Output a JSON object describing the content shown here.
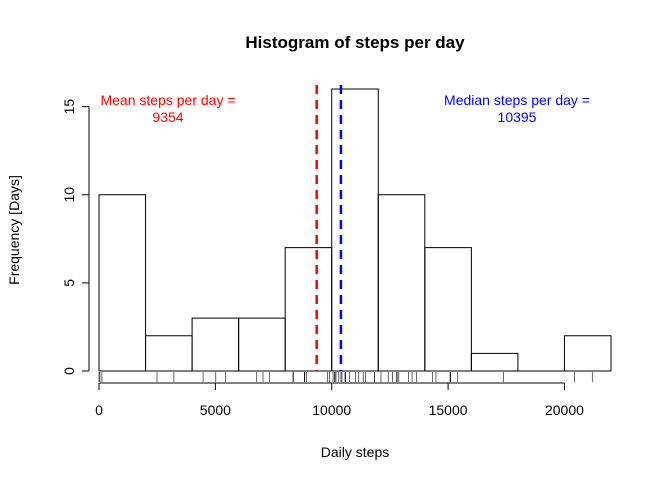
{
  "chart_data": {
    "type": "bar",
    "subtype": "histogram",
    "title": "Histogram of steps per day",
    "xlabel": "Daily steps",
    "ylabel": "Frequency [Days]",
    "xlim": [
      0,
      22000
    ],
    "ylim": [
      0,
      16
    ],
    "x_ticks": [
      "0",
      "5000",
      "10000",
      "15000",
      "20000"
    ],
    "x_tick_values": [
      0,
      5000,
      10000,
      15000,
      20000
    ],
    "y_ticks": [
      "0",
      "5",
      "10",
      "15"
    ],
    "y_tick_values": [
      0,
      5,
      10,
      15
    ],
    "bins": [
      {
        "from": 0,
        "to": 2000,
        "count": 10
      },
      {
        "from": 2000,
        "to": 4000,
        "count": 2
      },
      {
        "from": 4000,
        "to": 6000,
        "count": 3
      },
      {
        "from": 6000,
        "to": 8000,
        "count": 3
      },
      {
        "from": 8000,
        "to": 10000,
        "count": 7
      },
      {
        "from": 10000,
        "to": 12000,
        "count": 16
      },
      {
        "from": 12000,
        "to": 14000,
        "count": 10
      },
      {
        "from": 14000,
        "to": 16000,
        "count": 7
      },
      {
        "from": 16000,
        "to": 18000,
        "count": 1
      },
      {
        "from": 18000,
        "to": 20000,
        "count": 0
      },
      {
        "from": 20000,
        "to": 22000,
        "count": 2
      }
    ],
    "rug": [
      0,
      41,
      126,
      2492,
      3219,
      4472,
      5018,
      5441,
      6778,
      7047,
      7336,
      8334,
      8355,
      8821,
      8841,
      8918,
      9819,
      9900,
      10056,
      10119,
      10139,
      10183,
      10304,
      10395,
      10439,
      10571,
      10600,
      10765,
      11015,
      11162,
      11352,
      11458,
      11829,
      11834,
      12116,
      12426,
      12608,
      12787,
      12811,
      12883,
      13294,
      13452,
      13646,
      14339,
      14478,
      15084,
      15098,
      15110,
      15414,
      17382,
      20427,
      21194
    ],
    "mean": {
      "value": 9354,
      "label_line1": "Mean steps per day =",
      "label_line2": "9354",
      "color": "#ff0000"
    },
    "median": {
      "value": 10395,
      "label_line1": "Median steps per day =",
      "label_line2": "10395",
      "color": "#0000ff"
    },
    "grid": false
  }
}
